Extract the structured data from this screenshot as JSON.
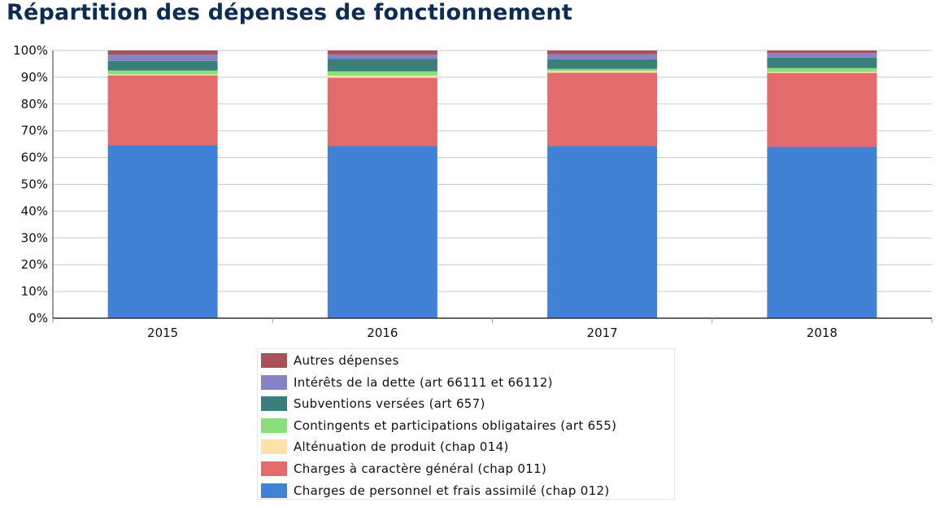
{
  "title": "Répartition des dépenses de fonctionnement",
  "chart_data": {
    "type": "bar",
    "stacked": true,
    "percent": true,
    "title": "Répartition des dépenses de fonctionnement",
    "categories": [
      "2015",
      "2016",
      "2017",
      "2018"
    ],
    "ylim": [
      0,
      100
    ],
    "yticks": [
      "0%",
      "10%",
      "20%",
      "30%",
      "40%",
      "50%",
      "60%",
      "70%",
      "80%",
      "90%",
      "100%"
    ],
    "grid": true,
    "legend_position": "bottom",
    "series": [
      {
        "name": "Charges de personnel et frais assimilé (chap 012)",
        "color": "#4182d6",
        "values": [
          64.6,
          64.3,
          64.3,
          64.0
        ]
      },
      {
        "name": "Charges à caractère général (chap 011)",
        "color": "#e36b6b",
        "values": [
          26.1,
          25.5,
          27.4,
          27.6
        ]
      },
      {
        "name": "Alténuation de produit (chap 014)",
        "color": "#fde1a6",
        "values": [
          0.4,
          0.8,
          0.6,
          0.4
        ]
      },
      {
        "name": "Contingents et participations obligataires (art 655)",
        "color": "#89e07a",
        "values": [
          1.4,
          1.6,
          0.8,
          1.4
        ]
      },
      {
        "name": "Subventions versées (art 657)",
        "color": "#3b7f7a",
        "values": [
          3.6,
          4.6,
          3.6,
          3.9
        ]
      },
      {
        "name": "Intérêts de la dette (art 66111 et 66112)",
        "color": "#8683c4",
        "values": [
          2.3,
          1.7,
          1.9,
          1.7
        ]
      },
      {
        "name": "Autres dépenses",
        "color": "#a9525a",
        "values": [
          1.6,
          1.5,
          1.4,
          1.0
        ]
      }
    ]
  }
}
